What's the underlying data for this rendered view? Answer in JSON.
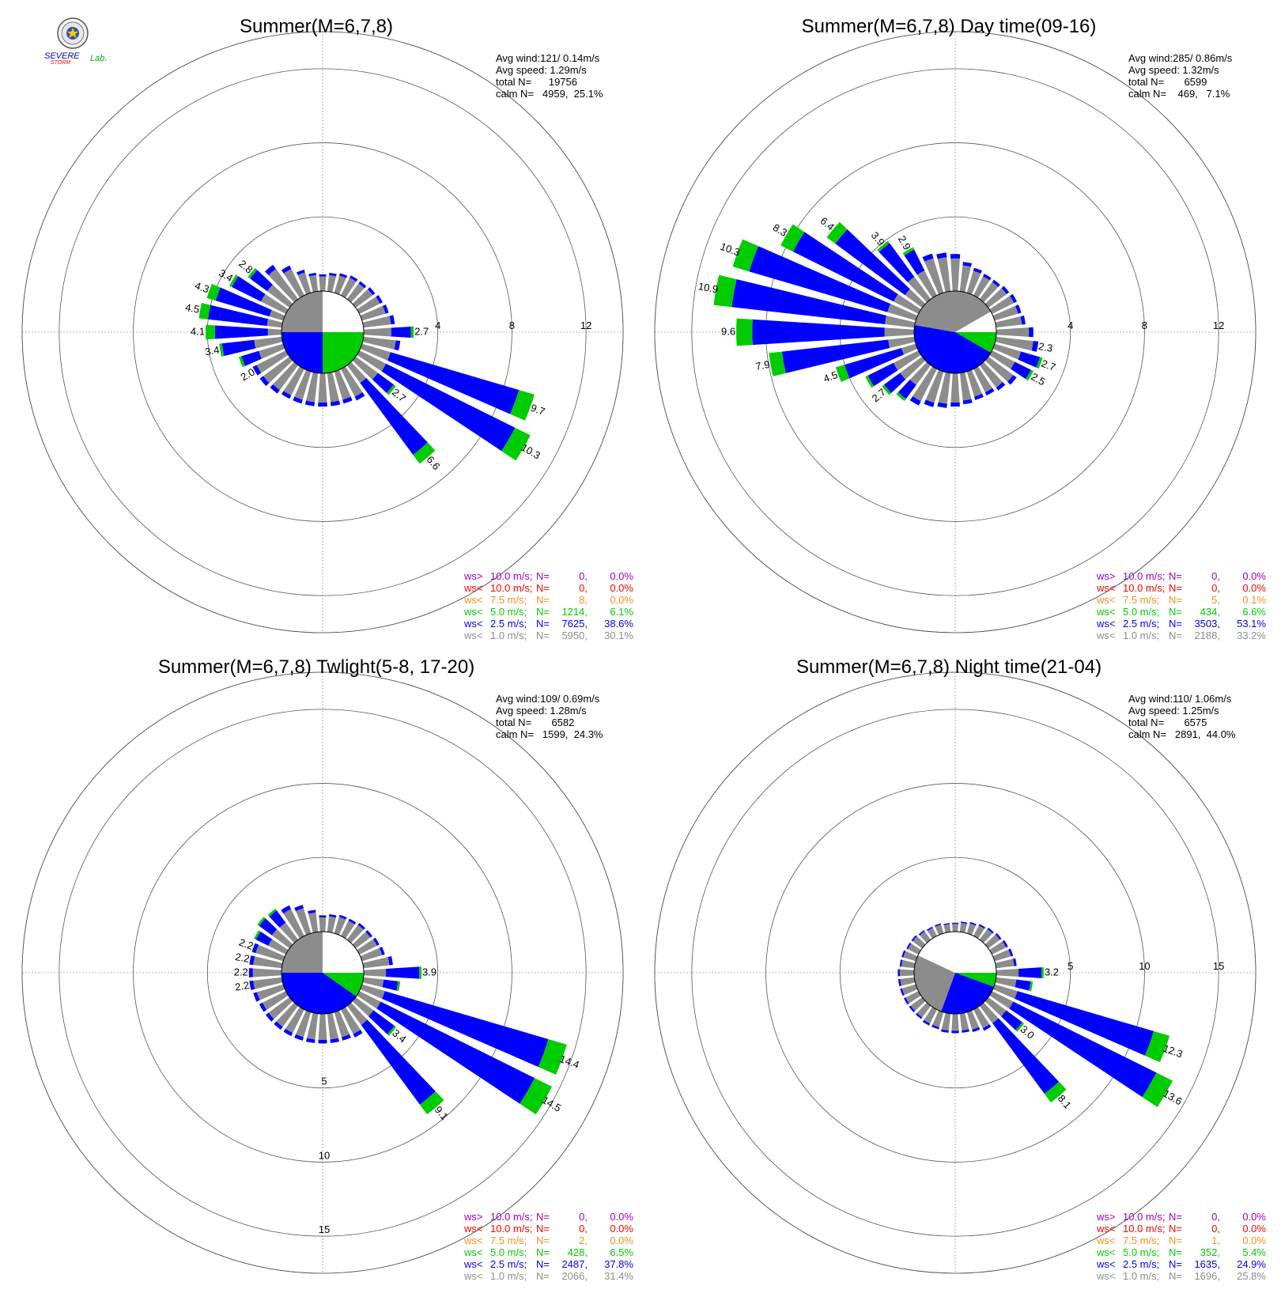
{
  "colors": {
    "lt1": "#8c8c8c",
    "lt2_5": "#0000ff",
    "lt5": "#00cc00",
    "lt7_5": "#ff8c1a",
    "lt10": "#ff0000",
    "gt10": "#9900cc",
    "grid": "#555555"
  },
  "logo": {
    "text_top": "SEVERE",
    "text_bottom": "STORM",
    "text_lab": "Lab.",
    "icon": "university-seal-icon"
  },
  "chart_data": [
    {
      "type": "windrose",
      "title": "Summer(M=6,7,8)",
      "stats": {
        "avg_wind": "Avg wind:121/ 0.14m/s",
        "avg_speed": "Avg speed: 1.29m/s",
        "total": "total N=      19756",
        "calm": "calm N=   4959,  25.1%"
      },
      "rmax": 14,
      "ring_step": 4,
      "ring_labels": [
        "4",
        "8",
        "12"
      ],
      "ring_label_axis": "east",
      "calm_arc_deg": [
        90,
        180
      ],
      "calm_pie": [
        {
          "from": 0,
          "to": 90,
          "class": "none"
        },
        {
          "from": 90,
          "to": 180,
          "class": "lt5"
        },
        {
          "from": 180,
          "to": 270,
          "class": "lt2_5"
        },
        {
          "from": 270,
          "to": 360,
          "class": "lt1"
        }
      ],
      "sectors": [
        {
          "dir": 0,
          "total": 0.9
        },
        {
          "dir": 10,
          "total": 1.0
        },
        {
          "dir": 20,
          "total": 1.1
        },
        {
          "dir": 30,
          "total": 1.2
        },
        {
          "dir": 40,
          "total": 1.2
        },
        {
          "dir": 50,
          "total": 1.3
        },
        {
          "dir": 60,
          "total": 1.4
        },
        {
          "dir": 70,
          "total": 1.5
        },
        {
          "dir": 80,
          "total": 1.7
        },
        {
          "dir": 90,
          "total": 2.7,
          "label": "2.7"
        },
        {
          "dir": 100,
          "total": 2.0
        },
        {
          "dir": 110,
          "total": 9.7,
          "label": "9.7"
        },
        {
          "dir": 120,
          "total": 10.3,
          "label": "10.3"
        },
        {
          "dir": 130,
          "total": 2.7,
          "label": "2.7"
        },
        {
          "dir": 140,
          "total": 6.6,
          "label": "6.6"
        },
        {
          "dir": 150,
          "total": 1.9
        },
        {
          "dir": 160,
          "total": 1.8
        },
        {
          "dir": 170,
          "total": 1.8
        },
        {
          "dir": 180,
          "total": 1.8
        },
        {
          "dir": 190,
          "total": 1.8
        },
        {
          "dir": 200,
          "total": 1.8
        },
        {
          "dir": 210,
          "total": 1.8
        },
        {
          "dir": 220,
          "total": 1.9
        },
        {
          "dir": 230,
          "total": 2.0
        },
        {
          "dir": 240,
          "total": 2.0,
          "label": "2.0"
        },
        {
          "dir": 250,
          "total": 2.5
        },
        {
          "dir": 260,
          "total": 3.4,
          "label": "3.4"
        },
        {
          "dir": 270,
          "total": 4.1,
          "label": "4.1"
        },
        {
          "dir": 280,
          "total": 4.5,
          "label": "4.5"
        },
        {
          "dir": 290,
          "total": 4.3,
          "label": "4.3"
        },
        {
          "dir": 300,
          "total": 3.4,
          "label": "3.4"
        },
        {
          "dir": 310,
          "total": 2.8,
          "label": "2.8"
        },
        {
          "dir": 320,
          "total": 2.3
        },
        {
          "dir": 330,
          "total": 1.8
        },
        {
          "dir": 340,
          "total": 1.3
        },
        {
          "dir": 350,
          "total": 1.0
        }
      ],
      "legend": [
        {
          "prefix": "ws>",
          "threshold": "10.0 m/s;",
          "n": "0,",
          "pct": "0.0%",
          "class": "gt10"
        },
        {
          "prefix": "ws<",
          "threshold": "10.0 m/s;",
          "n": "0,",
          "pct": "0.0%",
          "class": "lt10"
        },
        {
          "prefix": "ws<",
          "threshold": "7.5 m/s;",
          "n": "8,",
          "pct": "0.0%",
          "class": "lt7_5"
        },
        {
          "prefix": "ws<",
          "threshold": "5.0 m/s;",
          "n": "1214,",
          "pct": "6.1%",
          "class": "lt5"
        },
        {
          "prefix": "ws<",
          "threshold": "2.5 m/s;",
          "n": "7625,",
          "pct": "38.6%",
          "class": "lt2_5"
        },
        {
          "prefix": "ws<",
          "threshold": "1.0 m/s;",
          "n": "5950,",
          "pct": "30.1%",
          "class": "lt1"
        }
      ]
    },
    {
      "type": "windrose",
      "title": "Summer(M=6,7,8) Day time(09-16)",
      "stats": {
        "avg_wind": "Avg wind:285/ 0.86m/s",
        "avg_speed": "Avg speed: 1.32m/s",
        "total": "total N=       6599",
        "calm": "calm N=    469,   7.1%"
      },
      "rmax": 14,
      "ring_step": 4,
      "ring_labels": [
        "4",
        "8",
        "12"
      ],
      "ring_label_axis": "east",
      "calm_pie": [
        {
          "from": 0,
          "to": 60,
          "class": "lt1"
        },
        {
          "from": 60,
          "to": 90,
          "class": "none"
        },
        {
          "from": 90,
          "to": 120,
          "class": "lt5"
        },
        {
          "from": 120,
          "to": 280,
          "class": "lt2_5"
        },
        {
          "from": 280,
          "to": 360,
          "class": "lt1"
        }
      ],
      "sectors": [
        {
          "dir": 0,
          "total": 2.0
        },
        {
          "dir": 10,
          "total": 1.6
        },
        {
          "dir": 20,
          "total": 1.4
        },
        {
          "dir": 30,
          "total": 1.3
        },
        {
          "dir": 40,
          "total": 1.3
        },
        {
          "dir": 50,
          "total": 1.4
        },
        {
          "dir": 60,
          "total": 1.5
        },
        {
          "dir": 70,
          "total": 1.5
        },
        {
          "dir": 80,
          "total": 1.6
        },
        {
          "dir": 90,
          "total": 2.0
        },
        {
          "dir": 100,
          "total": 2.3,
          "label": "2.3"
        },
        {
          "dir": 110,
          "total": 2.7,
          "label": "2.7"
        },
        {
          "dir": 120,
          "total": 2.5,
          "label": "2.5"
        },
        {
          "dir": 130,
          "total": 1.9
        },
        {
          "dir": 140,
          "total": 1.7
        },
        {
          "dir": 150,
          "total": 1.6
        },
        {
          "dir": 160,
          "total": 1.6
        },
        {
          "dir": 170,
          "total": 1.7
        },
        {
          "dir": 180,
          "total": 1.8
        },
        {
          "dir": 190,
          "total": 1.9
        },
        {
          "dir": 200,
          "total": 2.0
        },
        {
          "dir": 210,
          "total": 2.2
        },
        {
          "dir": 220,
          "total": 2.4
        },
        {
          "dir": 230,
          "total": 2.7,
          "label": "2.7"
        },
        {
          "dir": 240,
          "total": 3.2
        },
        {
          "dir": 250,
          "total": 4.5,
          "label": "4.5"
        },
        {
          "dir": 260,
          "total": 7.9,
          "label": "7.9"
        },
        {
          "dir": 270,
          "total": 9.6,
          "label": "9.6"
        },
        {
          "dir": 280,
          "total": 10.9,
          "label": "10.9"
        },
        {
          "dir": 290,
          "total": 10.3,
          "label": "10.3"
        },
        {
          "dir": 300,
          "total": 8.3,
          "label": "8.3"
        },
        {
          "dir": 310,
          "total": 6.4,
          "label": "6.4"
        },
        {
          "dir": 320,
          "total": 3.9,
          "label": "3.9"
        },
        {
          "dir": 330,
          "total": 2.9,
          "label": "2.9"
        },
        {
          "dir": 340,
          "total": 2.2
        },
        {
          "dir": 350,
          "total": 2.1
        }
      ],
      "legend": [
        {
          "prefix": "ws>",
          "threshold": "10.0 m/s;",
          "n": "0,",
          "pct": "0.0%",
          "class": "gt10"
        },
        {
          "prefix": "ws<",
          "threshold": "10.0 m/s;",
          "n": "0,",
          "pct": "0.0%",
          "class": "lt10"
        },
        {
          "prefix": "ws<",
          "threshold": "7.5 m/s;",
          "n": "5,",
          "pct": "0.1%",
          "class": "lt7_5"
        },
        {
          "prefix": "ws<",
          "threshold": "5.0 m/s;",
          "n": "434,",
          "pct": "6.6%",
          "class": "lt5"
        },
        {
          "prefix": "ws<",
          "threshold": "2.5 m/s;",
          "n": "3503,",
          "pct": "53.1%",
          "class": "lt2_5"
        },
        {
          "prefix": "ws<",
          "threshold": "1.0 m/s;",
          "n": "2188,",
          "pct": "33.2%",
          "class": "lt1"
        }
      ]
    },
    {
      "type": "windrose",
      "title": "Summer(M=6,7,8) Twlight(5-8, 17-20)",
      "stats": {
        "avg_wind": "Avg wind:109/ 0.69m/s",
        "avg_speed": "Avg speed: 1.28m/s",
        "total": "total N=       6582",
        "calm": "calm N=   1599,  24.3%"
      },
      "rmax": 17.5,
      "ring_step": 5,
      "ring_labels": [
        "5",
        "10",
        "15"
      ],
      "ring_label_axis": "south",
      "calm_pie": [
        {
          "from": 0,
          "to": 90,
          "class": "none"
        },
        {
          "from": 90,
          "to": 125,
          "class": "lt5"
        },
        {
          "from": 125,
          "to": 270,
          "class": "lt2_5"
        },
        {
          "from": 270,
          "to": 360,
          "class": "lt1"
        }
      ],
      "sectors": [
        {
          "dir": 0,
          "total": 1.1
        },
        {
          "dir": 10,
          "total": 1.2
        },
        {
          "dir": 20,
          "total": 1.3
        },
        {
          "dir": 30,
          "total": 1.3
        },
        {
          "dir": 40,
          "total": 1.4
        },
        {
          "dir": 50,
          "total": 1.4
        },
        {
          "dir": 60,
          "total": 1.5
        },
        {
          "dir": 70,
          "total": 1.6
        },
        {
          "dir": 80,
          "total": 2.0
        },
        {
          "dir": 90,
          "total": 3.9,
          "label": "3.9"
        },
        {
          "dir": 100,
          "total": 2.5
        },
        {
          "dir": 110,
          "total": 14.4,
          "label": "14.4"
        },
        {
          "dir": 120,
          "total": 14.5,
          "label": "14.5"
        },
        {
          "dir": 130,
          "total": 3.4,
          "label": "3.4"
        },
        {
          "dir": 140,
          "total": 9.1,
          "label": "9.1"
        },
        {
          "dir": 150,
          "total": 2.1
        },
        {
          "dir": 160,
          "total": 2.0
        },
        {
          "dir": 170,
          "total": 2.0
        },
        {
          "dir": 180,
          "total": 2.0
        },
        {
          "dir": 190,
          "total": 2.0
        },
        {
          "dir": 200,
          "total": 2.0
        },
        {
          "dir": 210,
          "total": 2.0
        },
        {
          "dir": 220,
          "total": 2.0
        },
        {
          "dir": 230,
          "total": 2.0
        },
        {
          "dir": 240,
          "total": 2.0
        },
        {
          "dir": 250,
          "total": 2.1
        },
        {
          "dir": 260,
          "total": 2.2,
          "label": "2.2"
        },
        {
          "dir": 270,
          "total": 2.2,
          "label": "2.2"
        },
        {
          "dir": 280,
          "total": 2.2,
          "label": "2.2"
        },
        {
          "dir": 290,
          "total": 2.2,
          "label": "2.2"
        },
        {
          "dir": 300,
          "total": 2.4
        },
        {
          "dir": 310,
          "total": 2.7
        },
        {
          "dir": 320,
          "total": 2.6
        },
        {
          "dir": 330,
          "total": 2.3
        },
        {
          "dir": 340,
          "total": 2.0
        },
        {
          "dir": 350,
          "total": 1.5
        }
      ],
      "legend": [
        {
          "prefix": "ws>",
          "threshold": "10.0 m/s;",
          "n": "0,",
          "pct": "0.0%",
          "class": "gt10"
        },
        {
          "prefix": "ws<",
          "threshold": "10.0 m/s;",
          "n": "0,",
          "pct": "0.0%",
          "class": "lt10"
        },
        {
          "prefix": "ws<",
          "threshold": "7.5 m/s;",
          "n": "2,",
          "pct": "0.0%",
          "class": "lt7_5"
        },
        {
          "prefix": "ws<",
          "threshold": "5.0 m/s;",
          "n": "428,",
          "pct": "6.5%",
          "class": "lt5"
        },
        {
          "prefix": "ws<",
          "threshold": "2.5 m/s;",
          "n": "2487,",
          "pct": "37.8%",
          "class": "lt2_5"
        },
        {
          "prefix": "ws<",
          "threshold": "1.0 m/s;",
          "n": "2066,",
          "pct": "31.4%",
          "class": "lt1"
        }
      ]
    },
    {
      "type": "windrose",
      "title": "Summer(M=6,7,8) Night time(21-04)",
      "stats": {
        "avg_wind": "Avg wind:110/ 1.06m/s",
        "avg_speed": "Avg speed: 1.25m/s",
        "total": "total N=       6575",
        "calm": "calm N=   2891,  44.0%"
      },
      "rmax": 17.5,
      "ring_step": 5,
      "ring_labels": [
        "5",
        "10",
        "15"
      ],
      "ring_label_axis": "east",
      "calm_pie": [
        {
          "from": 0,
          "to": 90,
          "class": "none"
        },
        {
          "from": 90,
          "to": 110,
          "class": "lt5"
        },
        {
          "from": 110,
          "to": 200,
          "class": "lt2_5"
        },
        {
          "from": 200,
          "to": 295,
          "class": "lt1"
        },
        {
          "from": 295,
          "to": 360,
          "class": "none"
        }
      ],
      "sectors": [
        {
          "dir": 0,
          "total": 0.6
        },
        {
          "dir": 10,
          "total": 0.7
        },
        {
          "dir": 20,
          "total": 0.8
        },
        {
          "dir": 30,
          "total": 0.9
        },
        {
          "dir": 40,
          "total": 1.0
        },
        {
          "dir": 50,
          "total": 1.1
        },
        {
          "dir": 60,
          "total": 1.2
        },
        {
          "dir": 70,
          "total": 1.3
        },
        {
          "dir": 80,
          "total": 1.4
        },
        {
          "dir": 90,
          "total": 3.2,
          "label": "3.2"
        },
        {
          "dir": 100,
          "total": 2.5
        },
        {
          "dir": 110,
          "total": 12.3,
          "label": "12.3"
        },
        {
          "dir": 120,
          "total": 13.6,
          "label": "13.6"
        },
        {
          "dir": 130,
          "total": 3.0,
          "label": "3.0"
        },
        {
          "dir": 140,
          "total": 8.1,
          "label": "8.1"
        },
        {
          "dir": 150,
          "total": 1.6
        },
        {
          "dir": 160,
          "total": 1.4
        },
        {
          "dir": 170,
          "total": 1.3
        },
        {
          "dir": 180,
          "total": 1.3
        },
        {
          "dir": 190,
          "total": 1.3
        },
        {
          "dir": 200,
          "total": 1.2
        },
        {
          "dir": 210,
          "total": 1.2
        },
        {
          "dir": 220,
          "total": 1.1
        },
        {
          "dir": 230,
          "total": 1.1
        },
        {
          "dir": 240,
          "total": 1.1
        },
        {
          "dir": 250,
          "total": 1.1
        },
        {
          "dir": 260,
          "total": 1.1
        },
        {
          "dir": 270,
          "total": 1.1
        },
        {
          "dir": 280,
          "total": 1.0
        },
        {
          "dir": 290,
          "total": 1.0
        },
        {
          "dir": 300,
          "total": 0.9
        },
        {
          "dir": 310,
          "total": 0.9
        },
        {
          "dir": 320,
          "total": 0.8
        },
        {
          "dir": 330,
          "total": 0.7
        },
        {
          "dir": 340,
          "total": 0.7
        },
        {
          "dir": 350,
          "total": 0.6
        }
      ],
      "legend": [
        {
          "prefix": "ws>",
          "threshold": "10.0 m/s;",
          "n": "0,",
          "pct": "0.0%",
          "class": "gt10"
        },
        {
          "prefix": "ws<",
          "threshold": "10.0 m/s;",
          "n": "0,",
          "pct": "0.0%",
          "class": "lt10"
        },
        {
          "prefix": "ws<",
          "threshold": "7.5 m/s;",
          "n": "1,",
          "pct": "0.0%",
          "class": "lt7_5"
        },
        {
          "prefix": "ws<",
          "threshold": "5.0 m/s;",
          "n": "352,",
          "pct": "5.4%",
          "class": "lt5"
        },
        {
          "prefix": "ws<",
          "threshold": "2.5 m/s;",
          "n": "1635,",
          "pct": "24.9%",
          "class": "lt2_5"
        },
        {
          "prefix": "ws<",
          "threshold": "1.0 m/s;",
          "n": "1696,",
          "pct": "25.8%",
          "class": "lt1"
        }
      ]
    }
  ]
}
